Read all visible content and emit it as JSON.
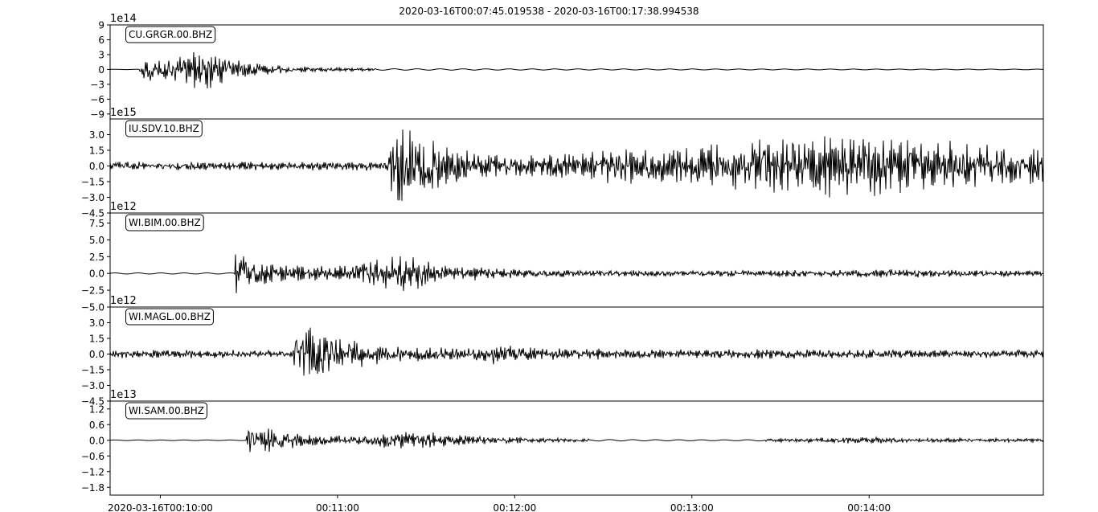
{
  "chart_data": {
    "type": "line",
    "title": "2020-03-16T00:07:45.019538  -  2020-03-16T00:17:38.994538",
    "x_axis": {
      "tick_labels": [
        "2020-03-16T00:10:00",
        "00:11:00",
        "00:12:00",
        "00:13:00",
        "00:14:00"
      ],
      "tick_seconds": [
        135,
        195,
        255,
        315,
        375
      ],
      "range_seconds": [
        118,
        434
      ]
    },
    "panels": [
      {
        "station": "CU.GRGR.00.BHZ",
        "exponent_label": "1e14",
        "ylim": [
          -10,
          9
        ],
        "yticks": [
          "9",
          "6",
          "3",
          "0",
          "−3",
          "−6",
          "−9"
        ],
        "ytick_values": [
          9,
          6,
          3,
          0,
          -3,
          -6,
          -9
        ],
        "envelope": [
          [
            118,
            0.05
          ],
          [
            128,
            0.05
          ],
          [
            128.5,
            2.2
          ],
          [
            136,
            1.8
          ],
          [
            148,
            3.8
          ],
          [
            151,
            4.5
          ],
          [
            158,
            2.0
          ],
          [
            166,
            1.2
          ],
          [
            178,
            0.7
          ],
          [
            190,
            0.4
          ],
          [
            210,
            0.25
          ],
          [
            260,
            0.2
          ],
          [
            300,
            0.18
          ],
          [
            360,
            0.15
          ],
          [
            434,
            0.12
          ]
        ]
      },
      {
        "station": "IU.SDV.10.BHZ",
        "exponent_label": "1e15",
        "ylim": [
          -4.5,
          4.5
        ],
        "yticks": [
          "3.0",
          "1.5",
          "0.0",
          "−1.5",
          "−3.0",
          "−4.5"
        ],
        "ytick_values": [
          3.0,
          1.5,
          0.0,
          -1.5,
          -3.0,
          -4.5
        ],
        "envelope": [
          [
            118,
            0.35
          ],
          [
            212,
            0.4
          ],
          [
            212.5,
            3.0
          ],
          [
            217,
            4.0
          ],
          [
            225,
            2.5
          ],
          [
            240,
            1.2
          ],
          [
            255,
            0.9
          ],
          [
            270,
            1.0
          ],
          [
            285,
            1.5
          ],
          [
            300,
            1.8
          ],
          [
            320,
            2.0
          ],
          [
            345,
            2.4
          ],
          [
            365,
            2.8
          ],
          [
            390,
            2.5
          ],
          [
            420,
            1.8
          ],
          [
            434,
            1.5
          ]
        ]
      },
      {
        "station": "WI.BIM.00.BHZ",
        "exponent_label": "1e12",
        "ylim": [
          -5,
          9
        ],
        "yticks": [
          "7.5",
          "5.0",
          "2.5",
          "0.0",
          "−2.5",
          "−5.0"
        ],
        "ytick_values": [
          7.5,
          5.0,
          2.5,
          0.0,
          -2.5,
          -5.0
        ],
        "envelope": [
          [
            118,
            0.15
          ],
          [
            160,
            0.15
          ],
          [
            160.5,
            2.8
          ],
          [
            166,
            2.0
          ],
          [
            178,
            1.2
          ],
          [
            195,
            1.0
          ],
          [
            205,
            1.5
          ],
          [
            218,
            2.8
          ],
          [
            228,
            1.5
          ],
          [
            245,
            0.8
          ],
          [
            265,
            0.5
          ],
          [
            300,
            0.4
          ],
          [
            340,
            0.4
          ],
          [
            380,
            0.55
          ],
          [
            410,
            0.45
          ],
          [
            434,
            0.35
          ]
        ]
      },
      {
        "station": "WI.MAGL.00.BHZ",
        "exponent_label": "1e12",
        "ylim": [
          -4.5,
          4.5
        ],
        "yticks": [
          "3.0",
          "1.5",
          "0.0",
          "−1.5",
          "−3.0",
          "−4.5"
        ],
        "ytick_values": [
          3.0,
          1.5,
          0.0,
          -1.5,
          -3.0,
          -4.5
        ],
        "envelope": [
          [
            118,
            0.35
          ],
          [
            180,
            0.35
          ],
          [
            180.5,
            2.2
          ],
          [
            186,
            2.6
          ],
          [
            196,
            1.5
          ],
          [
            210,
            0.8
          ],
          [
            240,
            0.5
          ],
          [
            248,
            0.9
          ],
          [
            258,
            0.6
          ],
          [
            300,
            0.4
          ],
          [
            360,
            0.4
          ],
          [
            434,
            0.35
          ]
        ]
      },
      {
        "station": "WI.SAM.00.BHZ",
        "exponent_label": "1e13",
        "ylim": [
          -2.1,
          1.5
        ],
        "yticks": [
          "1.2",
          "0.6",
          "0.0",
          "−0.6",
          "−1.2",
          "−1.8"
        ],
        "ytick_values": [
          1.2,
          0.6,
          0.0,
          -0.6,
          -1.2,
          -1.8
        ],
        "envelope": [
          [
            118,
            0.02
          ],
          [
            164,
            0.02
          ],
          [
            164.5,
            0.55
          ],
          [
            170,
            0.45
          ],
          [
            185,
            0.2
          ],
          [
            200,
            0.15
          ],
          [
            222,
            0.35
          ],
          [
            232,
            0.2
          ],
          [
            250,
            0.12
          ],
          [
            280,
            0.05
          ],
          [
            330,
            0.03
          ],
          [
            373,
            0.12
          ],
          [
            390,
            0.08
          ],
          [
            434,
            0.06
          ]
        ]
      }
    ]
  }
}
